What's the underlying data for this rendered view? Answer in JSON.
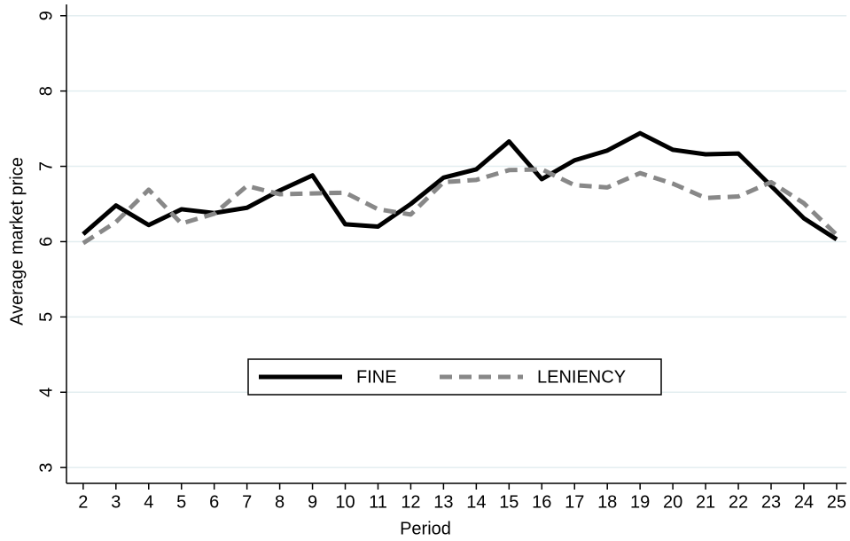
{
  "chart_data": {
    "type": "line",
    "x_label": "Period",
    "y_label": "Average market price",
    "x": [
      2,
      3,
      4,
      5,
      6,
      7,
      8,
      9,
      10,
      11,
      12,
      13,
      14,
      15,
      16,
      17,
      18,
      19,
      20,
      21,
      22,
      23,
      24,
      25
    ],
    "series": [
      {
        "name": "FINE",
        "color": "#000000",
        "dash": false,
        "values": [
          6.1,
          6.48,
          6.22,
          6.43,
          6.38,
          6.45,
          6.68,
          6.88,
          6.23,
          6.2,
          6.5,
          6.85,
          6.96,
          7.33,
          6.83,
          7.08,
          7.21,
          7.44,
          7.22,
          7.16,
          7.17,
          6.74,
          6.31,
          6.03
        ]
      },
      {
        "name": "LENIENCY",
        "color": "#888888",
        "dash": true,
        "values": [
          5.98,
          6.26,
          6.69,
          6.24,
          6.37,
          6.74,
          6.63,
          6.64,
          6.65,
          6.43,
          6.36,
          6.79,
          6.82,
          6.95,
          6.96,
          6.75,
          6.72,
          6.91,
          6.77,
          6.58,
          6.6,
          6.79,
          6.51,
          6.09
        ]
      }
    ],
    "xlim": [
      1.49,
      25.3
    ],
    "xticks": [
      2,
      3,
      4,
      5,
      6,
      7,
      8,
      9,
      10,
      11,
      12,
      13,
      14,
      15,
      16,
      17,
      18,
      19,
      20,
      21,
      22,
      23,
      24,
      25
    ],
    "ylim": [
      2.79,
      9.15
    ],
    "yticks": [
      3,
      4,
      5,
      6,
      7,
      8,
      9
    ],
    "grid": true,
    "legend_position": "center"
  }
}
